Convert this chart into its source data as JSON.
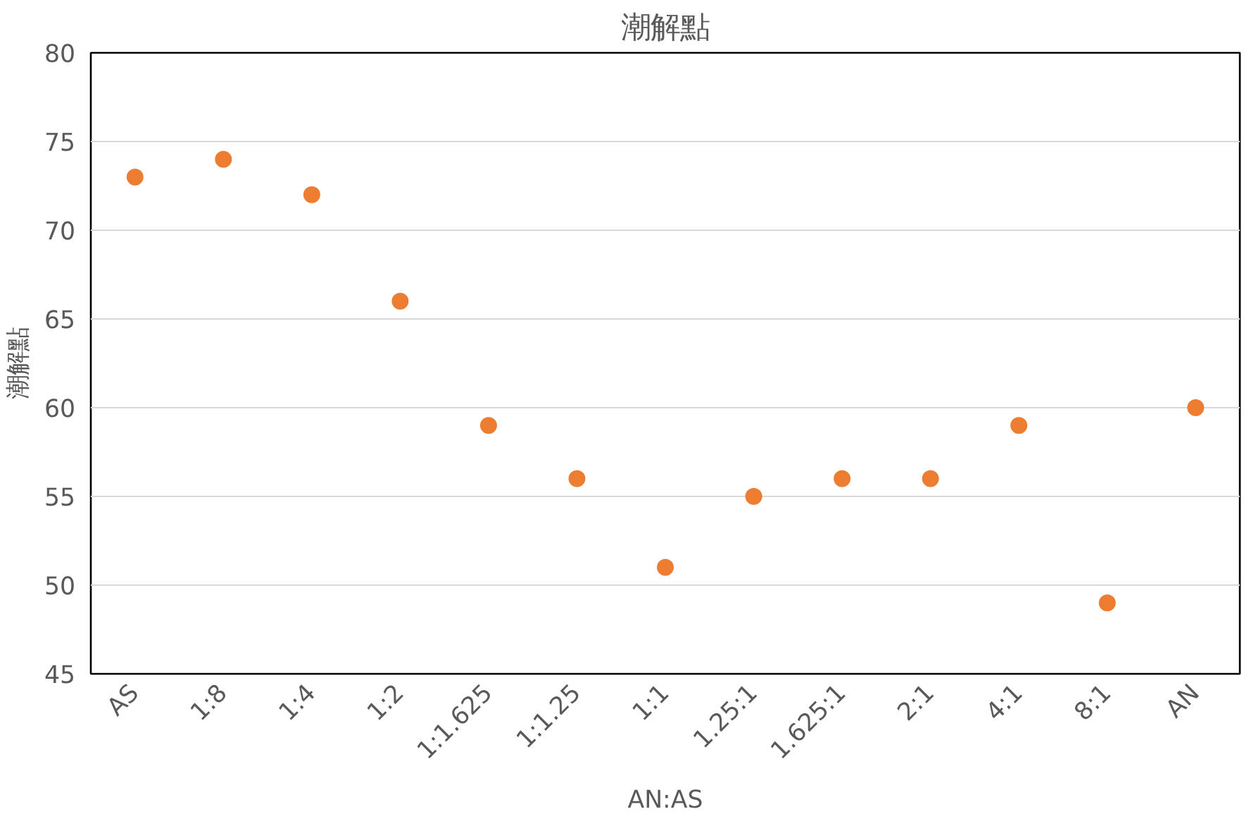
{
  "chart_data": {
    "type": "scatter",
    "title": "潮解點",
    "xlabel": "AN:AS",
    "ylabel": "潮解點",
    "categories": [
      "AS",
      "1:8",
      "1:4",
      "1:2",
      "1:1.625",
      "1:1.25",
      "1:1",
      "1.25:1",
      "1.625:1",
      "2:1",
      "4:1",
      "8:1",
      "AN"
    ],
    "series": [
      {
        "color": "#ed7d31",
        "values": [
          73,
          74,
          72,
          66,
          59,
          56,
          51,
          55,
          56,
          56,
          59,
          49,
          60
        ]
      }
    ],
    "ylim": [
      45,
      80
    ],
    "yticks": [
      45,
      50,
      55,
      60,
      65,
      70,
      75,
      80
    ],
    "grid": "y",
    "marker": "circle"
  }
}
